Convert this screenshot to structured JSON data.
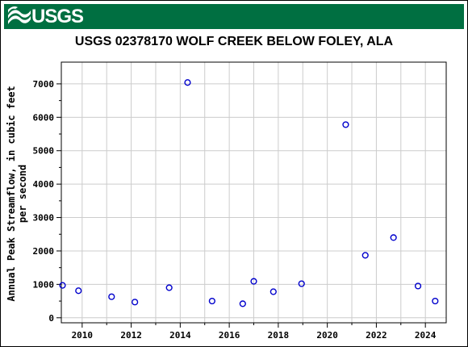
{
  "header": {
    "logo_text": "USGS"
  },
  "chart_data": {
    "type": "scatter",
    "title": "USGS 02378170 WOLF CREEK BELOW FOLEY, ALA",
    "xlabel": "",
    "ylabel_line1": "Annual Peak Streamflow, in cubic feet",
    "ylabel_line2": "per second",
    "xlim": [
      2009.15,
      2024.85
    ],
    "ylim": [
      -150,
      7650
    ],
    "x_ticks": [
      2010,
      2012,
      2014,
      2016,
      2018,
      2020,
      2022,
      2024
    ],
    "y_ticks": [
      0,
      1000,
      2000,
      3000,
      4000,
      5000,
      6000,
      7000
    ],
    "grid": true,
    "marker_color": "#0000cc",
    "points": [
      {
        "x": 2009.2,
        "y": 970
      },
      {
        "x": 2009.85,
        "y": 810
      },
      {
        "x": 2011.2,
        "y": 630
      },
      {
        "x": 2012.15,
        "y": 470
      },
      {
        "x": 2013.55,
        "y": 900
      },
      {
        "x": 2014.3,
        "y": 7040
      },
      {
        "x": 2015.3,
        "y": 500
      },
      {
        "x": 2016.55,
        "y": 420
      },
      {
        "x": 2017.0,
        "y": 1090
      },
      {
        "x": 2017.8,
        "y": 780
      },
      {
        "x": 2018.95,
        "y": 1020
      },
      {
        "x": 2020.75,
        "y": 5780
      },
      {
        "x": 2021.55,
        "y": 1870
      },
      {
        "x": 2022.7,
        "y": 2400
      },
      {
        "x": 2023.7,
        "y": 950
      },
      {
        "x": 2024.4,
        "y": 500
      }
    ]
  }
}
